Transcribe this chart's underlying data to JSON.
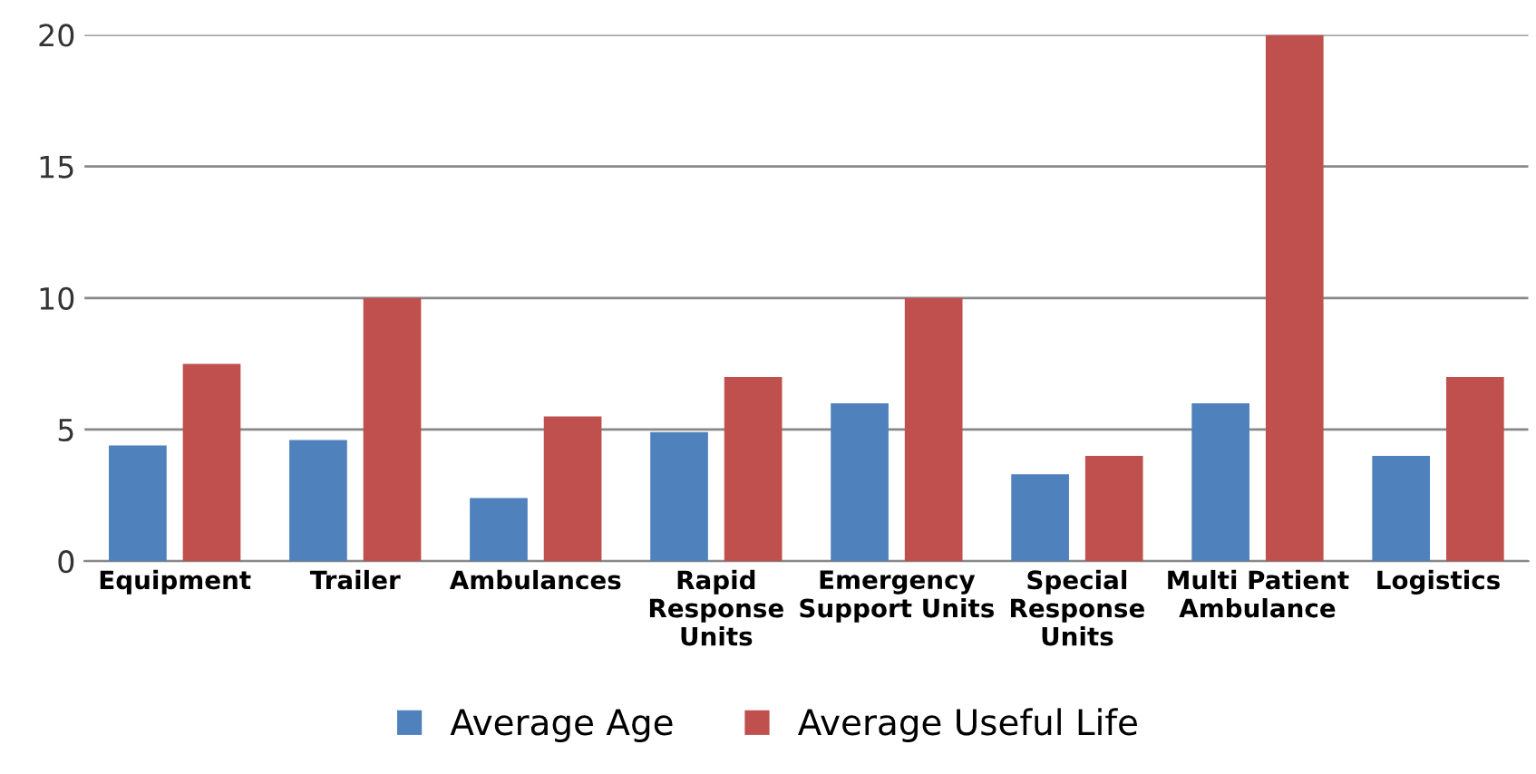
{
  "chart_data": {
    "type": "bar",
    "categories": [
      "Equipment",
      "Trailer",
      "Ambulances",
      "Rapid\nResponse\nUnits",
      "Emergency\nSupport Units",
      "Special\nResponse\nUnits",
      "Multi Patient\nAmbulance",
      "Logistics"
    ],
    "series": [
      {
        "name": "Average Age",
        "color": "#4f81bd",
        "values": [
          4.4,
          4.6,
          2.4,
          4.9,
          6.0,
          3.3,
          6.0,
          4.0
        ]
      },
      {
        "name": "Average Useful Life",
        "color": "#c0504d",
        "values": [
          7.5,
          10,
          5.5,
          7.0,
          10,
          4.0,
          20,
          7.0
        ]
      }
    ],
    "ylim": [
      0,
      20
    ],
    "yticks": [
      0,
      5,
      10,
      15,
      20
    ],
    "grid": "y",
    "legend": "bottom"
  }
}
